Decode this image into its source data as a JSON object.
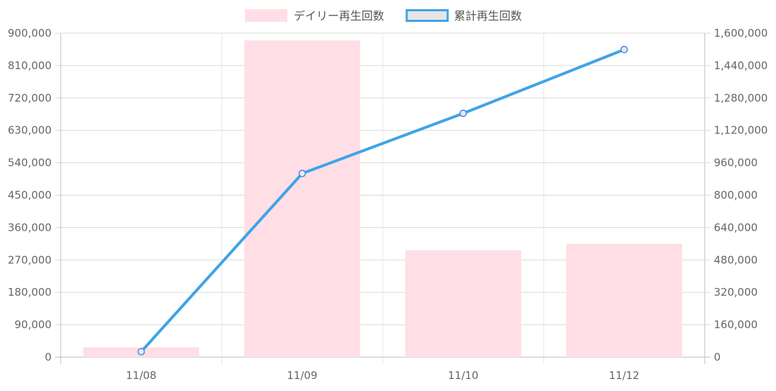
{
  "chart_data": {
    "type": "bar+line",
    "categories": [
      "11/08",
      "11/09",
      "11/10",
      "11/12"
    ],
    "series": [
      {
        "name": "デイリー再生回数",
        "type": "bar",
        "axis": "left",
        "values": [
          27000,
          880000,
          297000,
          315000
        ],
        "color": "#ffdfe5"
      },
      {
        "name": "累計再生回数",
        "type": "line",
        "axis": "right",
        "values": [
          27000,
          907000,
          1204000,
          1519000
        ],
        "color": "#3ea4e6"
      }
    ],
    "y_left": {
      "min": 0,
      "max": 900000,
      "ticks": [
        "0",
        "90,000",
        "180,000",
        "270,000",
        "360,000",
        "450,000",
        "540,000",
        "630,000",
        "720,000",
        "810,000",
        "900,000"
      ]
    },
    "y_right": {
      "min": 0,
      "max": 1600000,
      "ticks": [
        "0",
        "160,000",
        "320,000",
        "480,000",
        "640,000",
        "800,000",
        "960,000",
        "1,120,000",
        "1,280,000",
        "1,440,000",
        "1,600,000"
      ]
    },
    "legend_position": "top",
    "grid": true
  }
}
